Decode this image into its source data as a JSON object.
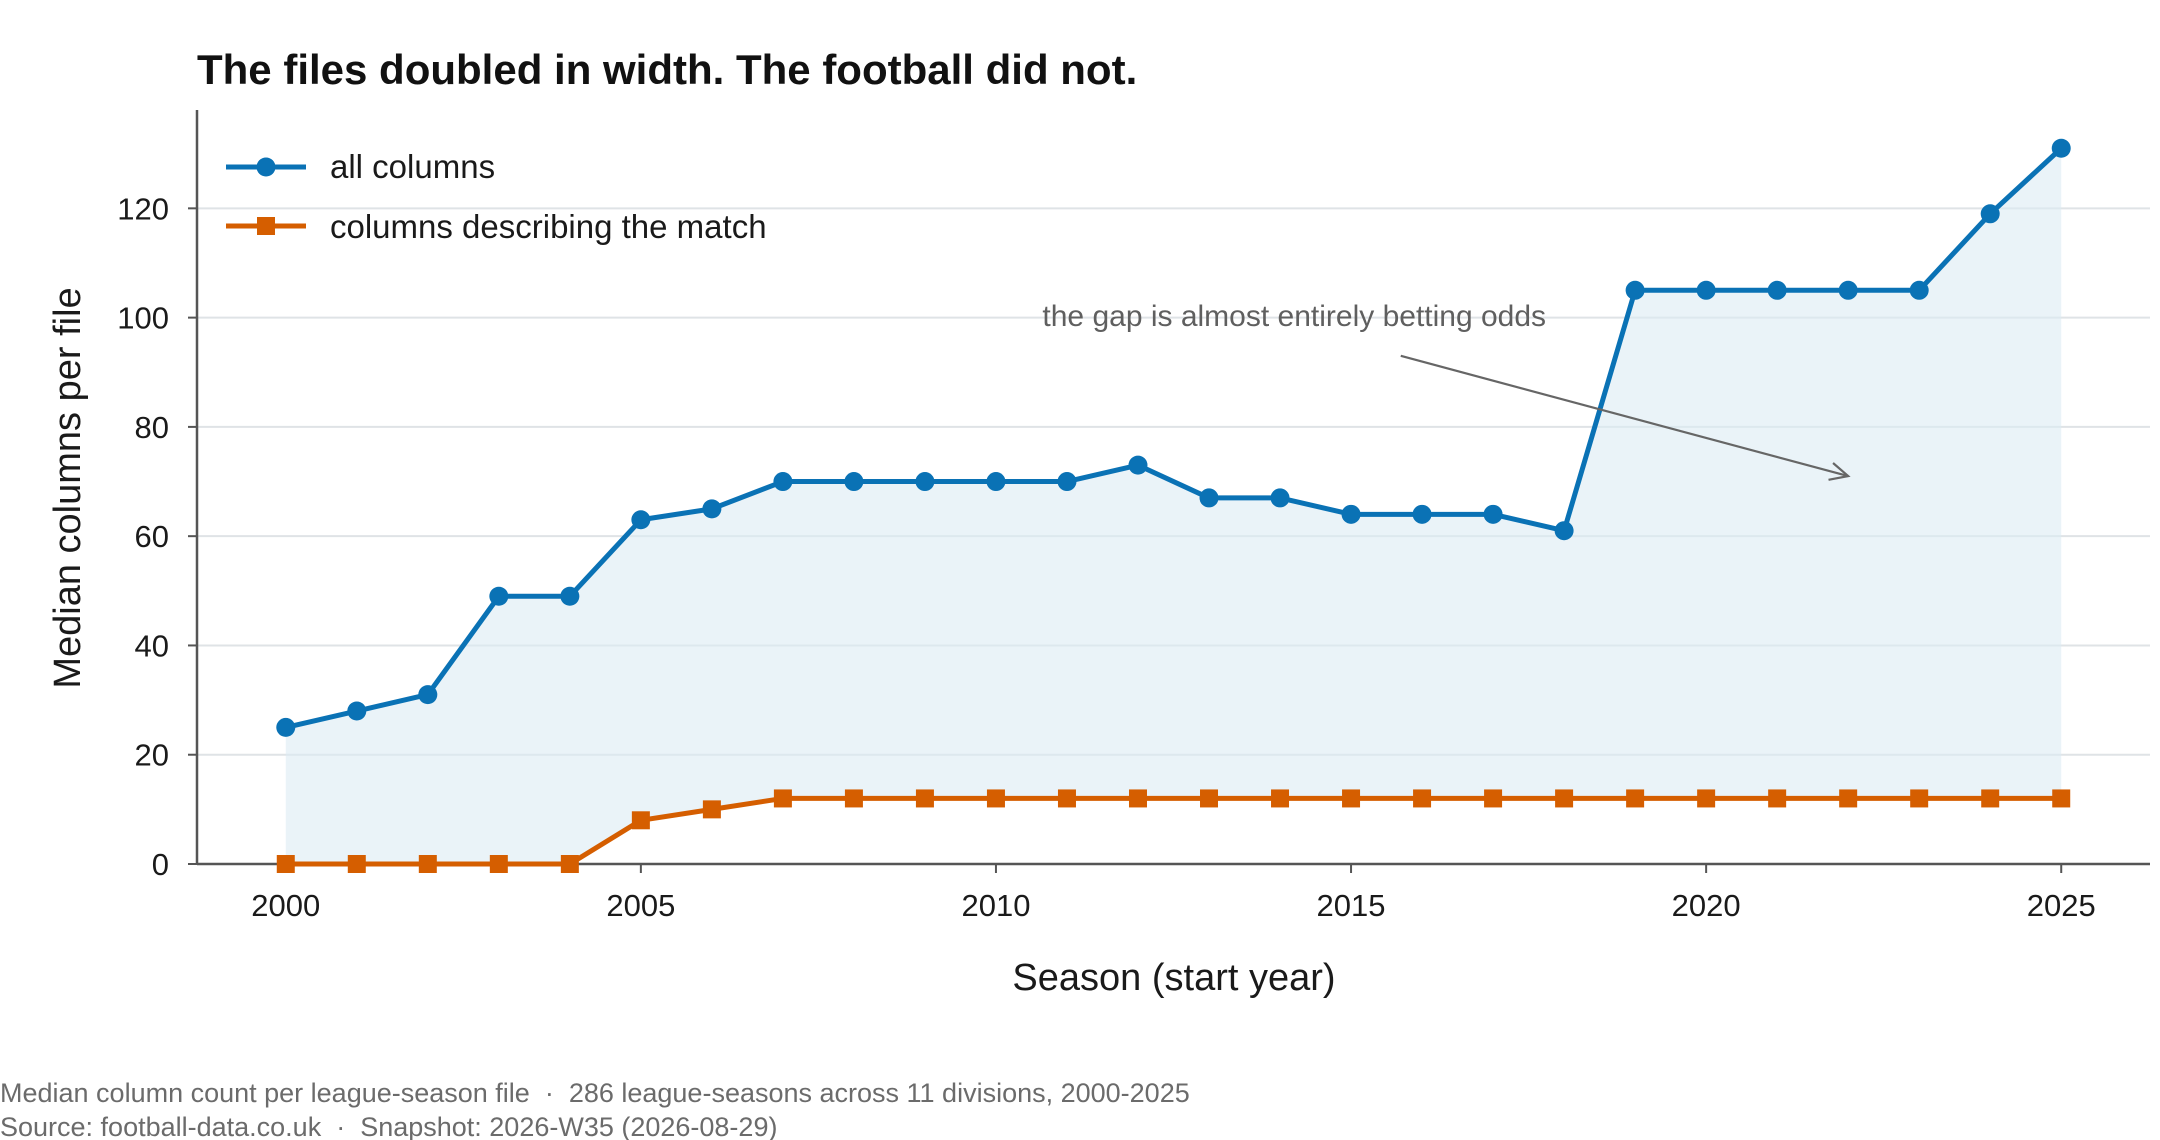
{
  "chart_data": {
    "type": "line",
    "title": "The files doubled in width. The football did not.",
    "xlabel": "Season (start year)",
    "ylabel": "Median columns per file",
    "x": [
      2000,
      2001,
      2002,
      2003,
      2004,
      2005,
      2006,
      2007,
      2008,
      2009,
      2010,
      2011,
      2012,
      2013,
      2014,
      2015,
      2016,
      2017,
      2018,
      2019,
      2020,
      2021,
      2022,
      2023,
      2024,
      2025
    ],
    "xlim": [
      1998.75,
      2026.25
    ],
    "ylim": [
      0,
      138
    ],
    "xticks": [
      2000,
      2005,
      2010,
      2015,
      2020,
      2025
    ],
    "yticks": [
      0,
      20,
      40,
      60,
      80,
      100,
      120
    ],
    "grid": "horizontal",
    "legend_position": "top-left",
    "series": [
      {
        "name": "all columns",
        "color": "#0a72b5",
        "marker": "circle",
        "fill_below": true,
        "values": [
          25,
          28,
          31,
          49,
          49,
          63,
          65,
          70,
          70,
          70,
          70,
          70,
          73,
          67,
          67,
          64,
          64,
          64,
          61,
          105,
          105,
          105,
          105,
          105,
          119,
          131
        ]
      },
      {
        "name": "columns describing the match",
        "color": "#d55e00",
        "marker": "square",
        "fill_below": false,
        "values": [
          0,
          0,
          0,
          0,
          0,
          8,
          10,
          12,
          12,
          12,
          12,
          12,
          12,
          12,
          12,
          12,
          12,
          12,
          12,
          12,
          12,
          12,
          12,
          12,
          12,
          12
        ]
      }
    ],
    "annotation": {
      "text": "the gap is almost entirely betting odds",
      "arrow_from": [
        2015.7,
        93
      ],
      "arrow_to": [
        2022,
        71
      ]
    },
    "fill_color": "#dcebf3"
  },
  "footer": {
    "line1": "Median column count per league-season file  ·  286 league-seasons across 11 divisions, 2000-2025",
    "line2": "Source: football-data.co.uk  ·  Snapshot: 2026-W35 (2026-08-29)"
  }
}
